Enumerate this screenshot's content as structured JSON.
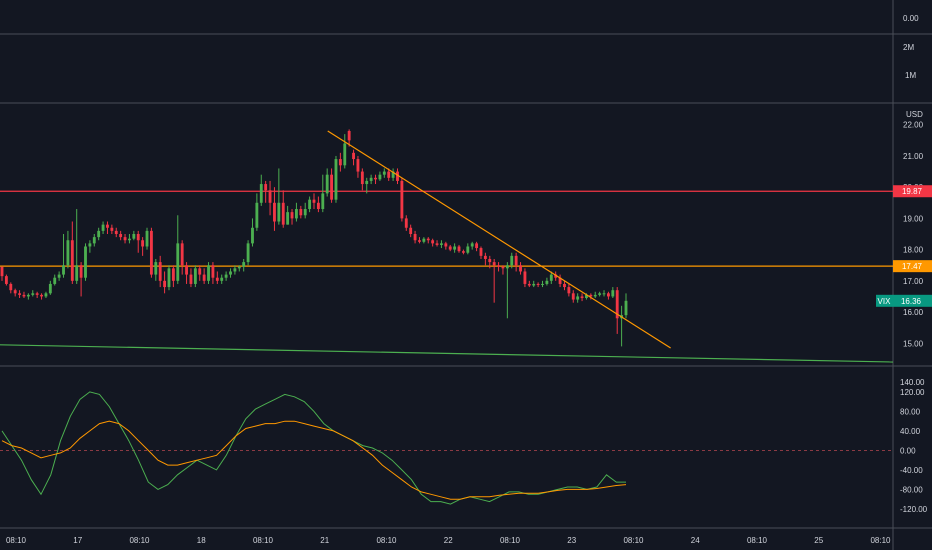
{
  "chart_data": {
    "type": "candlestick",
    "currency": "USD",
    "x_tick_labels": [
      "08:10",
      "17",
      "08:10",
      "18",
      "08:10",
      "21",
      "08:10",
      "22",
      "08:10",
      "23",
      "08:10",
      "24",
      "08:10",
      "25",
      "08:10"
    ],
    "panes": {
      "top": {
        "ticks": [
          "0.00"
        ]
      },
      "volume": {
        "ticks": [
          "2M",
          "1M"
        ]
      },
      "price": {
        "ticks": [
          "22.00",
          "21.00",
          "20.00",
          "19.00",
          "18.00",
          "17.00",
          "16.00",
          "15.00"
        ],
        "ylim": [
          14.4,
          22.6
        ],
        "symbol": "VIX",
        "last_value": 16.36,
        "last_label": "16.36",
        "horizontal_lines": [
          {
            "value": 19.87,
            "label": "19.87",
            "color": "#f23645"
          },
          {
            "value": 17.47,
            "label": "17.47",
            "color": "#ff9800"
          }
        ],
        "trendlines": [
          {
            "color": "#ff9800",
            "from": [
              0.367,
              21.8
            ],
            "to": [
              0.751,
              14.85
            ]
          },
          {
            "color": "#4caf50",
            "from": [
              0.0,
              14.95
            ],
            "to": [
              1.0,
              14.4
            ]
          }
        ],
        "candles": [
          [
            17.45,
            17.15,
            17.3,
            17.0
          ],
          [
            17.15,
            16.9,
            17.2,
            16.85
          ],
          [
            16.9,
            16.7,
            16.95,
            16.6
          ],
          [
            16.7,
            16.6,
            16.75,
            16.5
          ],
          [
            16.6,
            16.55,
            16.7,
            16.45
          ],
          [
            16.55,
            16.5,
            16.65,
            16.45
          ],
          [
            16.5,
            16.55,
            16.6,
            16.4
          ],
          [
            16.55,
            16.6,
            16.7,
            16.5
          ],
          [
            16.6,
            16.55,
            16.65,
            16.45
          ],
          [
            16.55,
            16.5,
            16.6,
            16.4
          ],
          [
            16.5,
            16.6,
            16.65,
            16.45
          ],
          [
            16.6,
            16.9,
            17.0,
            16.55
          ],
          [
            16.9,
            17.1,
            17.2,
            16.85
          ],
          [
            17.1,
            17.2,
            17.3,
            17.0
          ],
          [
            17.2,
            17.5,
            18.5,
            17.1
          ],
          [
            17.5,
            18.3,
            18.6,
            17.4
          ],
          [
            18.3,
            17.0,
            18.9,
            16.9
          ],
          [
            17.0,
            17.5,
            19.3,
            16.9
          ],
          [
            17.5,
            17.1,
            17.6,
            16.5
          ],
          [
            17.1,
            18.1,
            18.2,
            17.0
          ],
          [
            18.1,
            18.2,
            18.3,
            17.9
          ],
          [
            18.2,
            18.4,
            18.5,
            18.1
          ],
          [
            18.4,
            18.6,
            18.7,
            18.3
          ],
          [
            18.6,
            18.8,
            18.9,
            18.5
          ],
          [
            18.8,
            18.7,
            18.9,
            18.5
          ],
          [
            18.7,
            18.6,
            18.8,
            18.5
          ],
          [
            18.6,
            18.5,
            18.7,
            18.4
          ],
          [
            18.5,
            18.4,
            18.6,
            18.3
          ],
          [
            18.4,
            18.3,
            18.5,
            18.2
          ],
          [
            18.3,
            18.35,
            18.5,
            18.2
          ],
          [
            18.35,
            18.5,
            18.6,
            18.3
          ],
          [
            18.5,
            18.3,
            18.6,
            17.9
          ],
          [
            18.3,
            18.1,
            18.4,
            17.8
          ],
          [
            18.1,
            18.6,
            18.7,
            18.0
          ],
          [
            18.6,
            17.2,
            18.7,
            17.1
          ],
          [
            17.2,
            17.6,
            17.7,
            17.0
          ],
          [
            17.6,
            17.0,
            17.8,
            16.8
          ],
          [
            17.0,
            16.8,
            17.3,
            16.6
          ],
          [
            16.8,
            17.4,
            17.5,
            16.7
          ],
          [
            17.4,
            17.0,
            17.5,
            16.8
          ],
          [
            17.0,
            18.2,
            19.1,
            16.9
          ],
          [
            18.2,
            17.5,
            18.3,
            17.2
          ],
          [
            17.5,
            17.2,
            17.6,
            16.9
          ],
          [
            17.2,
            16.9,
            17.4,
            16.8
          ],
          [
            16.9,
            17.4,
            17.5,
            16.8
          ],
          [
            17.4,
            17.2,
            17.5,
            17.0
          ],
          [
            17.2,
            17.0,
            17.4,
            16.9
          ],
          [
            17.0,
            17.5,
            17.6,
            16.9
          ],
          [
            17.5,
            17.1,
            17.6,
            16.9
          ],
          [
            17.1,
            17.0,
            17.3,
            16.9
          ],
          [
            17.0,
            17.1,
            17.2,
            16.9
          ],
          [
            17.1,
            17.2,
            17.3,
            17.0
          ],
          [
            17.2,
            17.3,
            17.4,
            17.1
          ],
          [
            17.3,
            17.4,
            17.5,
            17.2
          ],
          [
            17.4,
            17.45,
            17.5,
            17.3
          ],
          [
            17.45,
            17.6,
            17.7,
            17.3
          ],
          [
            17.6,
            18.2,
            18.3,
            17.5
          ],
          [
            18.2,
            18.7,
            19.0,
            18.1
          ],
          [
            18.7,
            19.5,
            19.8,
            18.6
          ],
          [
            19.5,
            20.1,
            20.4,
            19.4
          ],
          [
            20.1,
            19.9,
            20.2,
            19.5
          ],
          [
            19.9,
            19.5,
            20.2,
            19.1
          ],
          [
            19.5,
            18.9,
            20.0,
            18.6
          ],
          [
            18.9,
            19.5,
            20.6,
            18.8
          ],
          [
            19.5,
            18.8,
            19.9,
            18.7
          ],
          [
            18.8,
            19.2,
            19.4,
            18.8
          ],
          [
            19.2,
            19.0,
            19.3,
            18.8
          ],
          [
            19.0,
            19.3,
            19.5,
            18.9
          ],
          [
            19.3,
            19.1,
            19.4,
            19.0
          ],
          [
            19.1,
            19.3,
            19.5,
            19.0
          ],
          [
            19.3,
            19.6,
            19.7,
            19.2
          ],
          [
            19.6,
            19.5,
            19.8,
            19.3
          ],
          [
            19.5,
            19.3,
            19.7,
            19.2
          ],
          [
            19.3,
            19.8,
            20.4,
            19.2
          ],
          [
            19.8,
            20.4,
            20.6,
            19.7
          ],
          [
            20.4,
            19.6,
            20.6,
            19.5
          ],
          [
            19.6,
            20.9,
            21.0,
            19.5
          ],
          [
            20.9,
            20.7,
            21.1,
            20.5
          ],
          [
            20.7,
            21.4,
            21.7,
            20.6
          ],
          [
            21.8,
            21.5,
            21.85,
            21.3
          ],
          [
            21.1,
            20.9,
            21.2,
            20.7
          ],
          [
            20.9,
            20.5,
            21.0,
            20.3
          ],
          [
            20.5,
            20.1,
            20.6,
            19.9
          ],
          [
            20.1,
            20.2,
            20.3,
            19.8
          ],
          [
            20.2,
            20.3,
            20.4,
            20.1
          ],
          [
            20.3,
            20.25,
            20.4,
            20.1
          ],
          [
            20.25,
            20.4,
            20.5,
            20.2
          ],
          [
            20.4,
            20.5,
            20.6,
            20.3
          ],
          [
            20.5,
            20.3,
            20.6,
            20.2
          ],
          [
            20.3,
            20.5,
            20.6,
            20.2
          ],
          [
            20.5,
            20.2,
            20.6,
            20.1
          ],
          [
            20.2,
            19.0,
            20.3,
            18.9
          ],
          [
            19.0,
            18.7,
            19.1,
            18.6
          ],
          [
            18.7,
            18.5,
            18.8,
            18.4
          ],
          [
            18.5,
            18.3,
            18.6,
            18.2
          ],
          [
            18.3,
            18.25,
            18.4,
            18.2
          ],
          [
            18.25,
            18.35,
            18.4,
            18.2
          ],
          [
            18.35,
            18.3,
            18.4,
            18.2
          ],
          [
            18.3,
            18.2,
            18.35,
            18.1
          ],
          [
            18.2,
            18.15,
            18.3,
            18.1
          ],
          [
            18.15,
            18.2,
            18.3,
            18.05
          ],
          [
            18.2,
            18.1,
            18.25,
            18.0
          ],
          [
            18.1,
            18.0,
            18.15,
            17.95
          ],
          [
            18.0,
            18.1,
            18.2,
            17.9
          ],
          [
            18.1,
            17.95,
            18.15,
            17.9
          ],
          [
            17.95,
            17.9,
            18.0,
            17.85
          ],
          [
            17.9,
            18.1,
            18.2,
            17.85
          ],
          [
            18.1,
            18.2,
            18.25,
            18.0
          ],
          [
            18.2,
            18.05,
            18.25,
            17.95
          ],
          [
            18.05,
            17.8,
            18.1,
            17.7
          ],
          [
            17.8,
            17.7,
            17.9,
            17.5
          ],
          [
            17.7,
            17.6,
            17.8,
            17.4
          ],
          [
            17.6,
            17.5,
            17.7,
            16.3
          ],
          [
            17.5,
            17.45,
            17.6,
            17.3
          ],
          [
            17.45,
            17.4,
            17.5,
            17.2
          ],
          [
            17.4,
            17.5,
            17.6,
            15.8
          ],
          [
            17.5,
            17.8,
            17.9,
            17.4
          ],
          [
            17.8,
            17.5,
            17.9,
            17.3
          ],
          [
            17.5,
            17.3,
            17.6,
            17.2
          ],
          [
            17.3,
            16.9,
            17.4,
            16.8
          ],
          [
            16.9,
            16.85,
            17.0,
            16.8
          ],
          [
            16.85,
            16.9,
            17.0,
            16.8
          ],
          [
            16.9,
            16.88,
            16.95,
            16.8
          ],
          [
            16.88,
            16.9,
            17.0,
            16.8
          ],
          [
            16.9,
            17.0,
            17.1,
            16.85
          ],
          [
            17.0,
            17.2,
            17.3,
            16.9
          ],
          [
            17.2,
            17.1,
            17.3,
            17.0
          ],
          [
            17.1,
            16.9,
            17.2,
            16.8
          ],
          [
            16.9,
            16.8,
            17.0,
            16.7
          ],
          [
            16.8,
            16.6,
            16.9,
            16.5
          ],
          [
            16.6,
            16.4,
            16.7,
            16.3
          ],
          [
            16.4,
            16.5,
            16.6,
            16.3
          ],
          [
            16.5,
            16.45,
            16.6,
            16.35
          ],
          [
            16.45,
            16.55,
            16.6,
            16.4
          ],
          [
            16.55,
            16.5,
            16.6,
            16.4
          ],
          [
            16.5,
            16.55,
            16.65,
            16.45
          ],
          [
            16.55,
            16.6,
            16.65,
            16.5
          ],
          [
            16.6,
            16.6,
            16.7,
            16.5
          ],
          [
            16.6,
            16.5,
            16.65,
            16.4
          ],
          [
            16.5,
            16.7,
            16.8,
            16.45
          ],
          [
            16.7,
            15.8,
            16.8,
            15.3
          ],
          [
            15.8,
            15.9,
            16.2,
            14.9
          ],
          [
            15.9,
            16.36,
            16.6,
            15.8
          ]
        ]
      },
      "oscillator": {
        "ticks": [
          "140.00",
          "120.00",
          "80.00",
          "40.00",
          "0.00",
          "-40.00",
          "-80.00",
          "-120.00"
        ],
        "tick_values": [
          140,
          120,
          80,
          40,
          0,
          -40,
          -80,
          -120
        ],
        "ylim": [
          -155,
          165
        ],
        "zero_line": 0,
        "series": [
          {
            "color": "#4caf50",
            "values": [
              40,
              10,
              -20,
              -60,
              -90,
              -50,
              20,
              70,
              105,
              120,
              115,
              90,
              55,
              20,
              -20,
              -65,
              -80,
              -70,
              -50,
              -35,
              -20,
              -30,
              -40,
              -10,
              30,
              65,
              85,
              95,
              105,
              115,
              110,
              100,
              80,
              55,
              40,
              30,
              20,
              10,
              5,
              -5,
              -20,
              -40,
              -60,
              -90,
              -105,
              -105,
              -110,
              -100,
              -95,
              -100,
              -105,
              -95,
              -85,
              -85,
              -90,
              -90,
              -85,
              -80,
              -75,
              -75,
              -80,
              -75,
              -50,
              -65,
              -65
            ]
          },
          {
            "color": "#ff9800",
            "values": [
              20,
              10,
              5,
              -5,
              -15,
              -10,
              -5,
              5,
              25,
              40,
              55,
              60,
              55,
              40,
              20,
              0,
              -20,
              -30,
              -30,
              -25,
              -20,
              -15,
              -10,
              10,
              30,
              45,
              50,
              55,
              55,
              60,
              60,
              55,
              50,
              45,
              40,
              30,
              20,
              5,
              -10,
              -30,
              -45,
              -60,
              -75,
              -85,
              -90,
              -95,
              -100,
              -100,
              -95,
              -95,
              -95,
              -92,
              -90,
              -88,
              -88,
              -88,
              -85,
              -82,
              -80,
              -80,
              -80,
              -78,
              -75,
              -72,
              -70
            ]
          }
        ]
      }
    }
  }
}
